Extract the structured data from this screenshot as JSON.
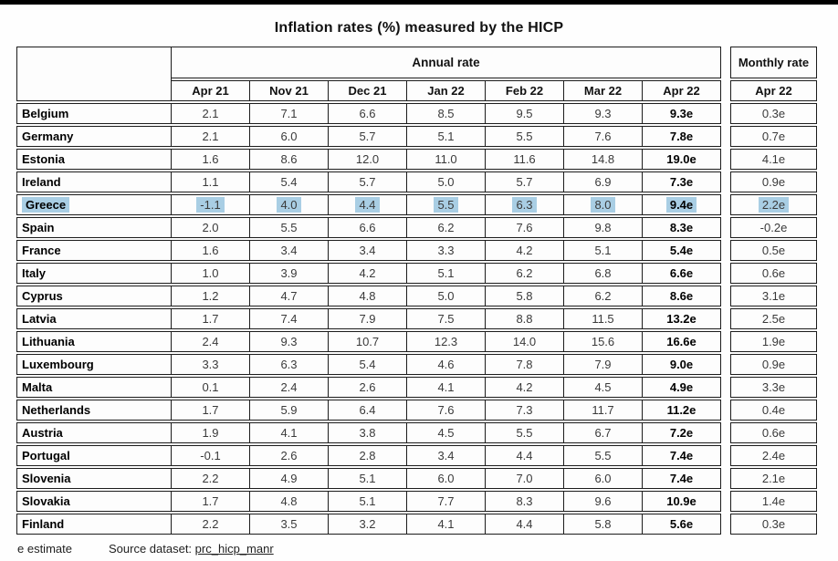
{
  "page": {
    "title": "Inflation rates (%) measured by the HICP"
  },
  "table": {
    "annual_header": "Annual rate",
    "monthly_header": "Monthly rate",
    "columns": [
      "Apr 21",
      "Nov 21",
      "Dec 21",
      "Jan 22",
      "Feb 22",
      "Mar 22",
      "Apr 22"
    ],
    "monthly_column": "Apr 22",
    "highlight_color": "#a9cee4",
    "rows": [
      {
        "country": "Belgium",
        "values": [
          "2.1",
          "7.1",
          "6.6",
          "8.5",
          "9.5",
          "9.3",
          "9.3e"
        ],
        "monthly": "0.3e",
        "highlighted": false
      },
      {
        "country": "Germany",
        "values": [
          "2.1",
          "6.0",
          "5.7",
          "5.1",
          "5.5",
          "7.6",
          "7.8e"
        ],
        "monthly": "0.7e",
        "highlighted": false
      },
      {
        "country": "Estonia",
        "values": [
          "1.6",
          "8.6",
          "12.0",
          "11.0",
          "11.6",
          "14.8",
          "19.0e"
        ],
        "monthly": "4.1e",
        "highlighted": false
      },
      {
        "country": "Ireland",
        "values": [
          "1.1",
          "5.4",
          "5.7",
          "5.0",
          "5.7",
          "6.9",
          "7.3e"
        ],
        "monthly": "0.9e",
        "highlighted": false
      },
      {
        "country": "Greece",
        "values": [
          "-1.1",
          "4.0",
          "4.4",
          "5.5",
          "6.3",
          "8.0",
          "9.4e"
        ],
        "monthly": "2.2e",
        "highlighted": true
      },
      {
        "country": "Spain",
        "values": [
          "2.0",
          "5.5",
          "6.6",
          "6.2",
          "7.6",
          "9.8",
          "8.3e"
        ],
        "monthly": "-0.2e",
        "highlighted": false
      },
      {
        "country": "France",
        "values": [
          "1.6",
          "3.4",
          "3.4",
          "3.3",
          "4.2",
          "5.1",
          "5.4e"
        ],
        "monthly": "0.5e",
        "highlighted": false
      },
      {
        "country": "Italy",
        "values": [
          "1.0",
          "3.9",
          "4.2",
          "5.1",
          "6.2",
          "6.8",
          "6.6e"
        ],
        "monthly": "0.6e",
        "highlighted": false
      },
      {
        "country": "Cyprus",
        "values": [
          "1.2",
          "4.7",
          "4.8",
          "5.0",
          "5.8",
          "6.2",
          "8.6e"
        ],
        "monthly": "3.1e",
        "highlighted": false
      },
      {
        "country": "Latvia",
        "values": [
          "1.7",
          "7.4",
          "7.9",
          "7.5",
          "8.8",
          "11.5",
          "13.2e"
        ],
        "monthly": "2.5e",
        "highlighted": false
      },
      {
        "country": "Lithuania",
        "values": [
          "2.4",
          "9.3",
          "10.7",
          "12.3",
          "14.0",
          "15.6",
          "16.6e"
        ],
        "monthly": "1.9e",
        "highlighted": false
      },
      {
        "country": "Luxembourg",
        "values": [
          "3.3",
          "6.3",
          "5.4",
          "4.6",
          "7.8",
          "7.9",
          "9.0e"
        ],
        "monthly": "0.9e",
        "highlighted": false
      },
      {
        "country": "Malta",
        "values": [
          "0.1",
          "2.4",
          "2.6",
          "4.1",
          "4.2",
          "4.5",
          "4.9e"
        ],
        "monthly": "3.3e",
        "highlighted": false
      },
      {
        "country": "Netherlands",
        "values": [
          "1.7",
          "5.9",
          "6.4",
          "7.6",
          "7.3",
          "11.7",
          "11.2e"
        ],
        "monthly": "0.4e",
        "highlighted": false
      },
      {
        "country": "Austria",
        "values": [
          "1.9",
          "4.1",
          "3.8",
          "4.5",
          "5.5",
          "6.7",
          "7.2e"
        ],
        "monthly": "0.6e",
        "highlighted": false
      },
      {
        "country": "Portugal",
        "values": [
          "-0.1",
          "2.6",
          "2.8",
          "3.4",
          "4.4",
          "5.5",
          "7.4e"
        ],
        "monthly": "2.4e",
        "highlighted": false
      },
      {
        "country": "Slovenia",
        "values": [
          "2.2",
          "4.9",
          "5.1",
          "6.0",
          "7.0",
          "6.0",
          "7.4e"
        ],
        "monthly": "2.1e",
        "highlighted": false
      },
      {
        "country": "Slovakia",
        "values": [
          "1.7",
          "4.8",
          "5.1",
          "7.7",
          "8.3",
          "9.6",
          "10.9e"
        ],
        "monthly": "1.4e",
        "highlighted": false
      },
      {
        "country": "Finland",
        "values": [
          "2.2",
          "3.5",
          "3.2",
          "4.1",
          "4.4",
          "5.8",
          "5.6e"
        ],
        "monthly": "0.3e",
        "highlighted": false
      }
    ]
  },
  "footer": {
    "estimate_note": "e estimate",
    "source_label": "Source dataset:",
    "source_link": "prc_hicp_manr"
  }
}
